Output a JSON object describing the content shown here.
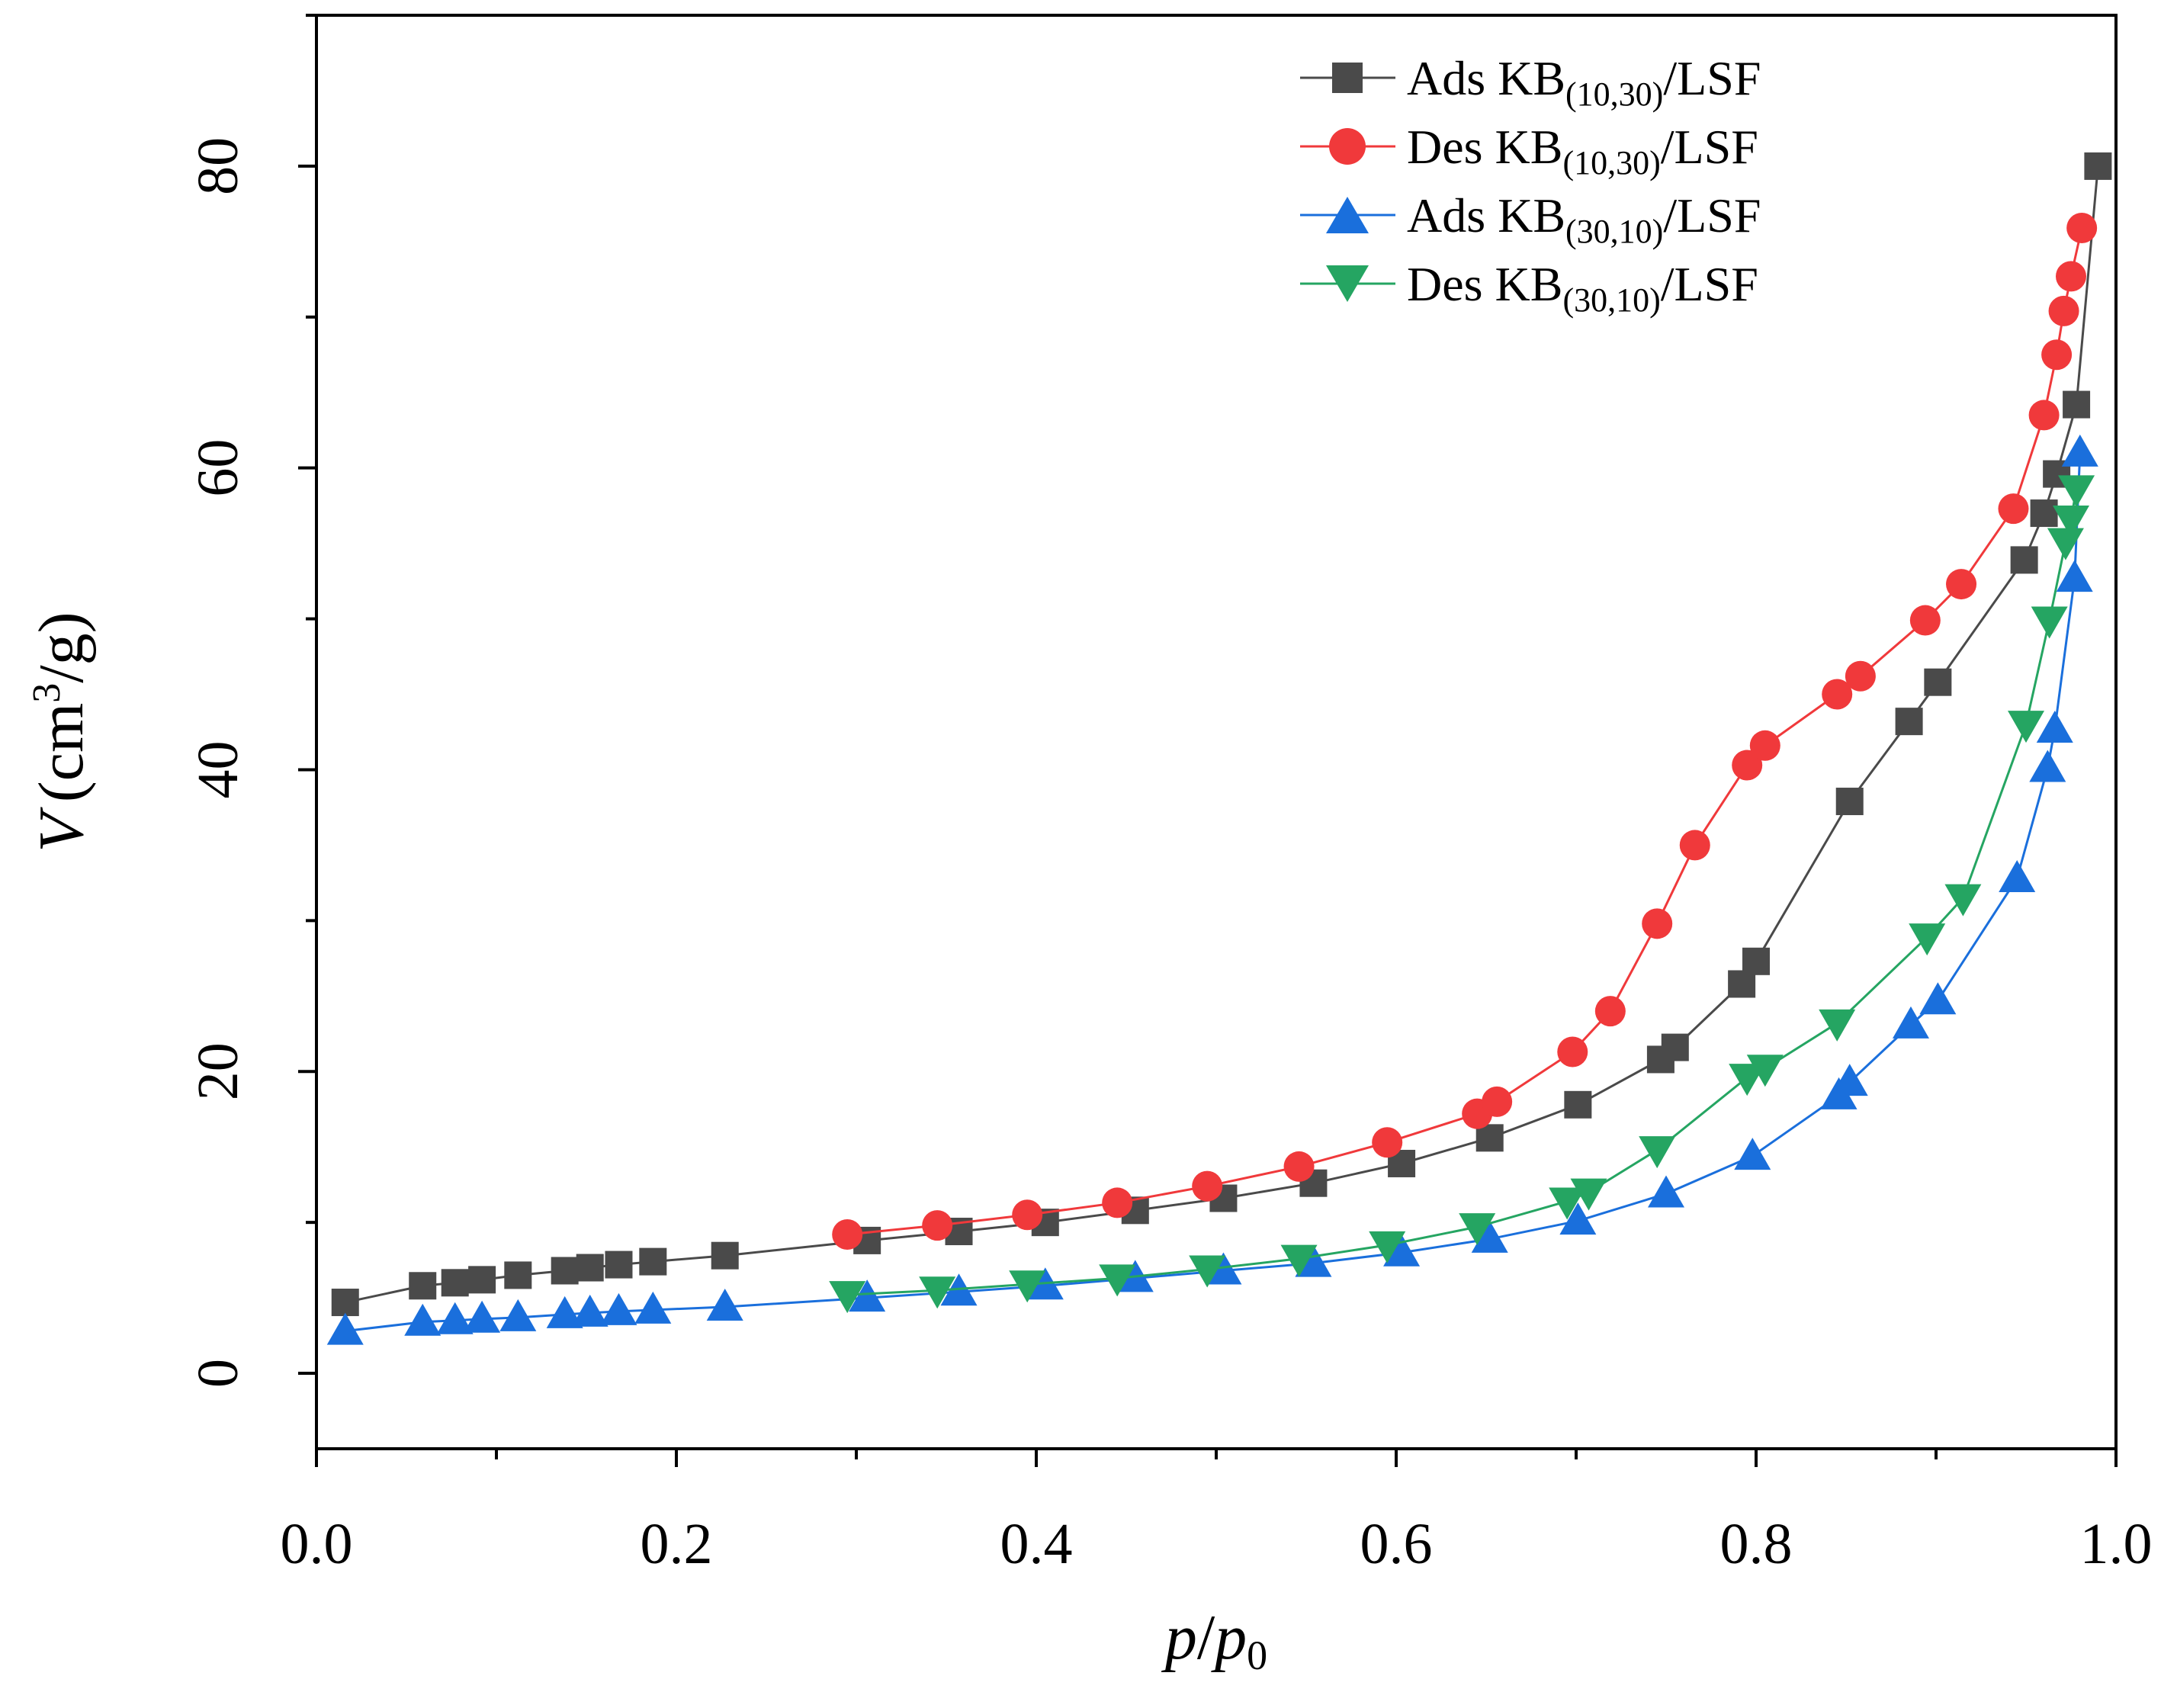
{
  "chart_data": {
    "type": "line",
    "title": "",
    "xlabel": "p/p0",
    "ylabel": "V (cm3/g)",
    "xlabel_parts": {
      "p": "p",
      "slash": "/",
      "p0": "p",
      "sub": "0"
    },
    "ylabel_parts": {
      "v": "V",
      "pre": "(cm",
      "sup": "3",
      "post": "/g)"
    },
    "xlim": [
      0.0,
      1.0
    ],
    "ylim": [
      -5,
      90
    ],
    "xticks": [
      "0.0",
      "0.2",
      "0.4",
      "0.6",
      "0.8",
      "1.0"
    ],
    "yticks": [
      "0",
      "20",
      "40",
      "60",
      "80"
    ],
    "legend_position": "top-right",
    "series": [
      {
        "name": "Ads KB(10,30)/LSF",
        "label_prefix": "Ads KB",
        "label_sub": "(10,30)",
        "label_suffix": "/LSF",
        "marker": "square",
        "color": "#4a4a4a",
        "x": [
          0.016,
          0.059,
          0.077,
          0.092,
          0.112,
          0.138,
          0.152,
          0.168,
          0.187,
          0.227,
          0.306,
          0.357,
          0.405,
          0.455,
          0.504,
          0.554,
          0.603,
          0.652,
          0.701,
          0.747,
          0.755,
          0.792,
          0.8,
          0.852,
          0.885,
          0.901,
          0.949,
          0.96,
          0.967,
          0.978,
          0.99
        ],
        "y": [
          4.7,
          5.8,
          6.0,
          6.2,
          6.5,
          6.8,
          7.0,
          7.2,
          7.4,
          7.8,
          8.8,
          9.4,
          10.0,
          10.8,
          11.6,
          12.6,
          13.9,
          15.6,
          17.8,
          20.8,
          21.6,
          25.8,
          27.3,
          37.9,
          43.2,
          45.8,
          53.9,
          57.0,
          59.6,
          64.2,
          80.0
        ]
      },
      {
        "name": "Des KB(10,30)/LSF",
        "label_prefix": "Des KB",
        "label_sub": "(10,30)",
        "label_suffix": "/LSF",
        "marker": "circle",
        "color": "#f0393b",
        "x": [
          0.295,
          0.345,
          0.395,
          0.445,
          0.495,
          0.546,
          0.595,
          0.645,
          0.656,
          0.698,
          0.719,
          0.745,
          0.766,
          0.795,
          0.805,
          0.845,
          0.858,
          0.894,
          0.914,
          0.943,
          0.96,
          0.967,
          0.971,
          0.975,
          0.981
        ],
        "y": [
          9.2,
          9.8,
          10.5,
          11.3,
          12.4,
          13.7,
          15.3,
          17.2,
          18.0,
          21.3,
          24.0,
          29.8,
          35.0,
          40.3,
          41.6,
          45.0,
          46.2,
          49.9,
          52.3,
          57.3,
          63.5,
          67.5,
          70.4,
          72.7,
          75.9
        ]
      },
      {
        "name": "Ads KB(30,10)/LSF",
        "label_prefix": "Ads KB",
        "label_sub": "(30,10)",
        "label_suffix": "/LSF",
        "marker": "triangle-up",
        "color": "#1a6fdc",
        "x": [
          0.016,
          0.059,
          0.077,
          0.092,
          0.112,
          0.138,
          0.152,
          0.168,
          0.187,
          0.227,
          0.306,
          0.357,
          0.405,
          0.455,
          0.504,
          0.554,
          0.603,
          0.652,
          0.701,
          0.75,
          0.798,
          0.846,
          0.852,
          0.886,
          0.901,
          0.945,
          0.962,
          0.966,
          0.977,
          0.98
        ],
        "y": [
          2.8,
          3.4,
          3.5,
          3.6,
          3.7,
          3.9,
          4.0,
          4.1,
          4.2,
          4.4,
          5.0,
          5.4,
          5.8,
          6.3,
          6.8,
          7.3,
          8.0,
          8.9,
          10.1,
          11.9,
          14.4,
          18.4,
          19.3,
          23.1,
          24.7,
          32.8,
          40.1,
          42.7,
          52.7,
          61.0
        ]
      },
      {
        "name": "Des KB(30,10)/LSF",
        "label_prefix": "Des KB",
        "label_sub": "(30,10)",
        "label_suffix": "/LSF",
        "marker": "triangle-down",
        "color": "#25a562",
        "x": [
          0.295,
          0.345,
          0.395,
          0.445,
          0.495,
          0.546,
          0.595,
          0.645,
          0.695,
          0.707,
          0.745,
          0.795,
          0.805,
          0.845,
          0.895,
          0.915,
          0.95,
          0.963,
          0.972,
          0.975,
          0.978
        ],
        "y": [
          5.2,
          5.5,
          5.9,
          6.3,
          6.9,
          7.6,
          8.5,
          9.7,
          11.4,
          12.0,
          14.8,
          19.6,
          20.2,
          23.2,
          28.9,
          31.5,
          43.0,
          49.9,
          55.1,
          56.6,
          58.6
        ]
      }
    ]
  }
}
